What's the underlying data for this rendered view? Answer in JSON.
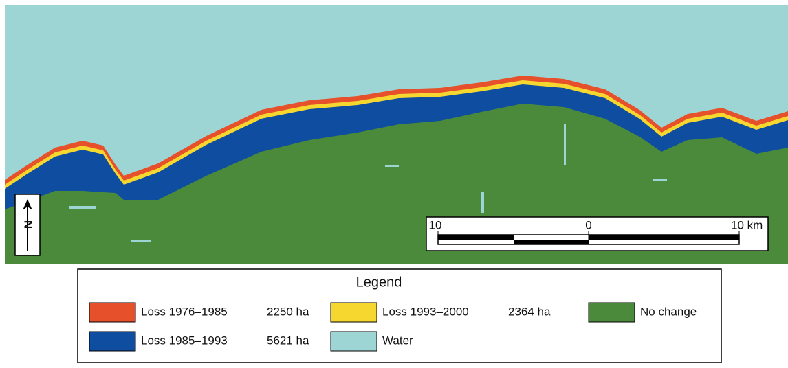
{
  "map": {
    "north_arrow": {
      "label": "N"
    },
    "scale_bar": {
      "labels": [
        "10",
        "0",
        "10 km"
      ]
    },
    "legend": {
      "title": "Legend",
      "items": [
        {
          "label": "Loss 1976–1985",
          "area": "2250 ha",
          "color": "#e6502a"
        },
        {
          "label": "Loss 1985–1993",
          "area": "5621 ha",
          "color": "#0e4d9f"
        },
        {
          "label": "Loss 1993–2000",
          "area": "2364 ha",
          "color": "#f6d730"
        },
        {
          "label": "Water",
          "color": "#9dd4d4"
        },
        {
          "label": "No change",
          "color": "#4b8a3b"
        }
      ]
    }
  }
}
